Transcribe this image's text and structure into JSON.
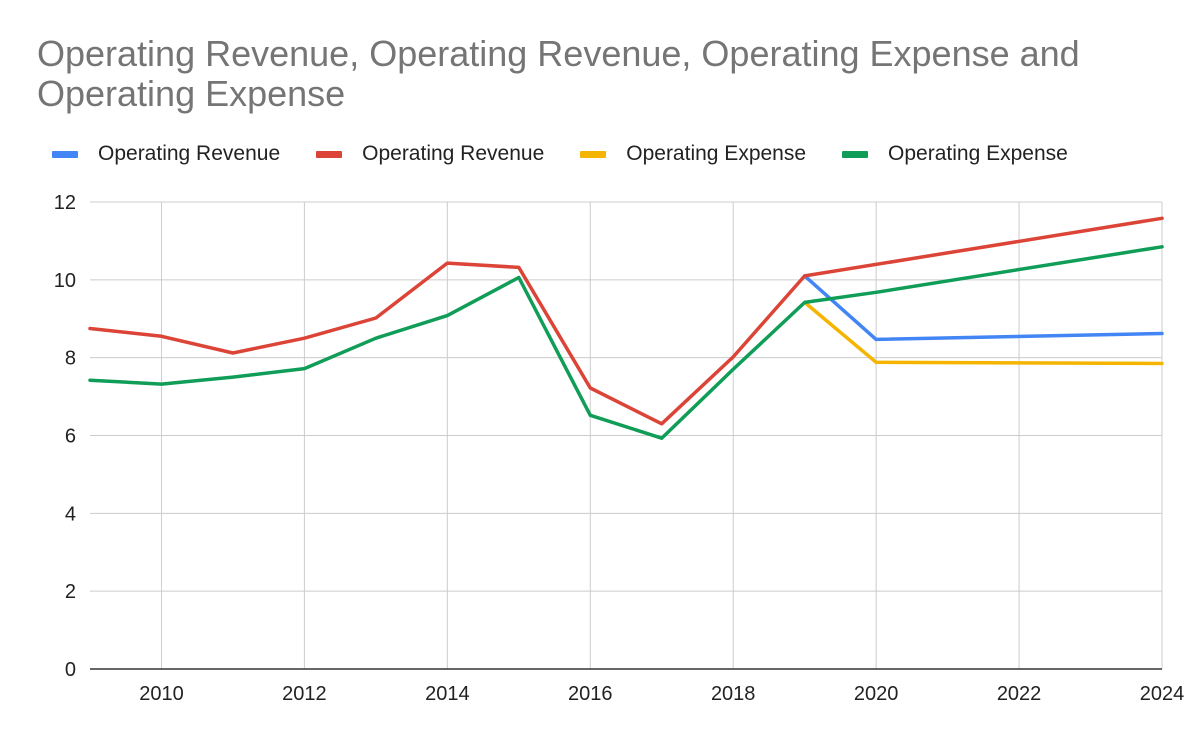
{
  "chart_data": {
    "type": "line",
    "title": "Operating Revenue, Operating Revenue, Operating Expense and Operating Expense",
    "xlabel": "",
    "ylabel": "",
    "xlim": [
      2009,
      2024
    ],
    "ylim": [
      0,
      12
    ],
    "x_ticks": [
      "2010",
      "2012",
      "2014",
      "2016",
      "2018",
      "2020",
      "2022",
      "2024"
    ],
    "x_tick_values": [
      2010,
      2012,
      2014,
      2016,
      2018,
      2020,
      2022,
      2024
    ],
    "y_ticks": [
      "0",
      "2",
      "4",
      "6",
      "8",
      "10",
      "12"
    ],
    "y_tick_values": [
      0,
      2,
      4,
      6,
      8,
      10,
      12
    ],
    "grid": true,
    "legend_position": "top",
    "series": [
      {
        "name": "Operating Revenue",
        "color": "#4285f4",
        "points": [
          [
            2019,
            10.1
          ],
          [
            2020,
            8.47
          ],
          [
            2024,
            8.62
          ]
        ]
      },
      {
        "name": "Operating Revenue",
        "color": "#db4437",
        "points": [
          [
            2009,
            8.75
          ],
          [
            2010,
            8.55
          ],
          [
            2011,
            8.12
          ],
          [
            2012,
            8.5
          ],
          [
            2013,
            9.02
          ],
          [
            2014,
            10.43
          ],
          [
            2015,
            10.32
          ],
          [
            2016,
            7.22
          ],
          [
            2017,
            6.3
          ],
          [
            2018,
            8.02
          ],
          [
            2019,
            10.1
          ],
          [
            2024,
            11.58
          ]
        ]
      },
      {
        "name": "Operating Expense",
        "color": "#f4b400",
        "points": [
          [
            2019,
            9.42
          ],
          [
            2020,
            7.88
          ],
          [
            2024,
            7.85
          ]
        ]
      },
      {
        "name": "Operating Expense",
        "color": "#0f9d58",
        "points": [
          [
            2009,
            7.42
          ],
          [
            2010,
            7.32
          ],
          [
            2011,
            7.5
          ],
          [
            2012,
            7.72
          ],
          [
            2013,
            8.5
          ],
          [
            2014,
            9.08
          ],
          [
            2015,
            10.06
          ],
          [
            2016,
            6.52
          ],
          [
            2017,
            5.93
          ],
          [
            2018,
            7.7
          ],
          [
            2019,
            9.42
          ],
          [
            2020,
            9.68
          ],
          [
            2024,
            10.85
          ]
        ]
      }
    ]
  }
}
